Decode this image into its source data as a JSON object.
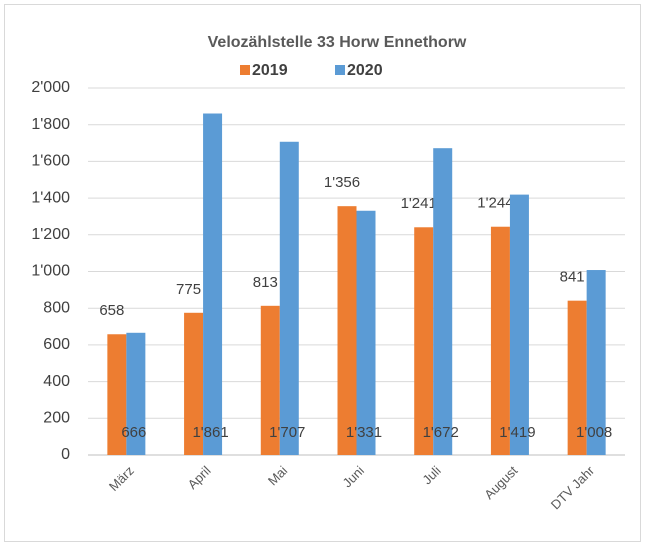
{
  "chart_data": {
    "type": "bar",
    "title": "Velozählstelle 33 Horw Ennethorw",
    "categories": [
      "März",
      "April",
      "Mai",
      "Juni",
      "Juli",
      "August",
      "DTV Jahr"
    ],
    "series": [
      {
        "name": "2019",
        "color": "#ed7d31",
        "values": [
          658,
          775,
          813,
          1356,
          1241,
          1244,
          841
        ],
        "value_labels": [
          "658",
          "775",
          "813",
          "1'356",
          "1'241",
          "1'244",
          "841"
        ]
      },
      {
        "name": "2020",
        "color": "#5b9bd5",
        "values": [
          666,
          1861,
          1707,
          1331,
          1672,
          1419,
          1008
        ],
        "value_labels": [
          "666",
          "1'861",
          "1'707",
          "1'331",
          "1'672",
          "1'419",
          "1'008"
        ]
      }
    ],
    "ylim": [
      0,
      2000
    ],
    "yticks": [
      0,
      200,
      400,
      600,
      800,
      {
        "value": 1000,
        "label": "1'000"
      },
      {
        "value": 1200,
        "label": "1'200"
      },
      {
        "value": 1400,
        "label": "1'400"
      },
      {
        "value": 1600,
        "label": "1'600"
      },
      {
        "value": 1800,
        "label": "1'800"
      },
      {
        "value": 2000,
        "label": "2'000"
      }
    ],
    "grid": true,
    "legend": "top"
  }
}
